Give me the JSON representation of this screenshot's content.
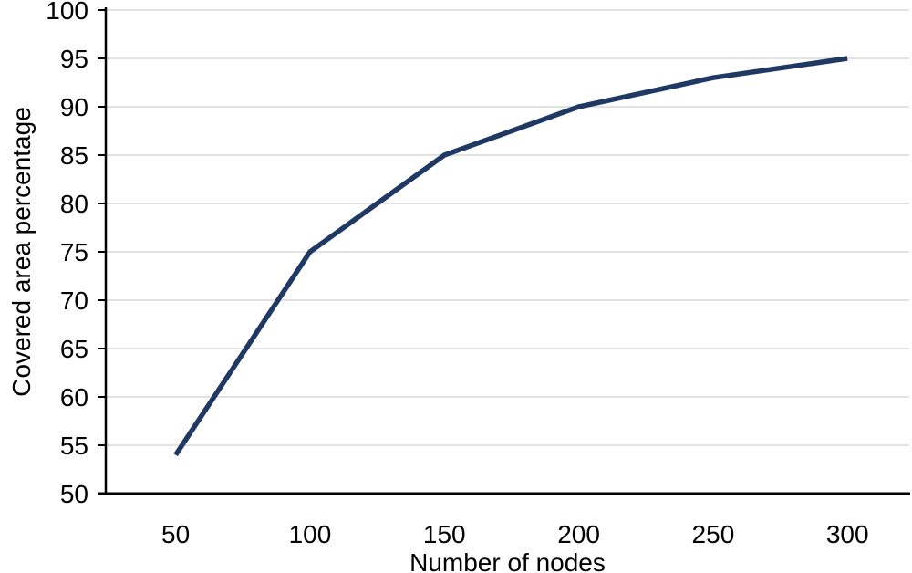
{
  "chart_data": {
    "type": "line",
    "title": "",
    "xlabel": "Number of nodes",
    "ylabel": "Covered area percentage",
    "x": [
      50,
      100,
      150,
      200,
      250,
      300
    ],
    "series": [
      {
        "name": "Covered area percentage",
        "values": [
          54,
          75,
          85,
          90,
          93,
          95
        ]
      }
    ],
    "xticks": [
      50,
      100,
      150,
      200,
      250,
      300
    ],
    "yticks": [
      50,
      55,
      60,
      65,
      70,
      75,
      80,
      85,
      90,
      95,
      100
    ],
    "xlim": [
      24,
      323
    ],
    "ylim": [
      50,
      100
    ],
    "ytick_step": 5,
    "grid": "horizontal",
    "legend": "none",
    "colors": {
      "line": "#1f3864",
      "axis": "#000000",
      "grid": "#d9d9d9",
      "text": "#000000",
      "background": "#ffffff"
    }
  }
}
